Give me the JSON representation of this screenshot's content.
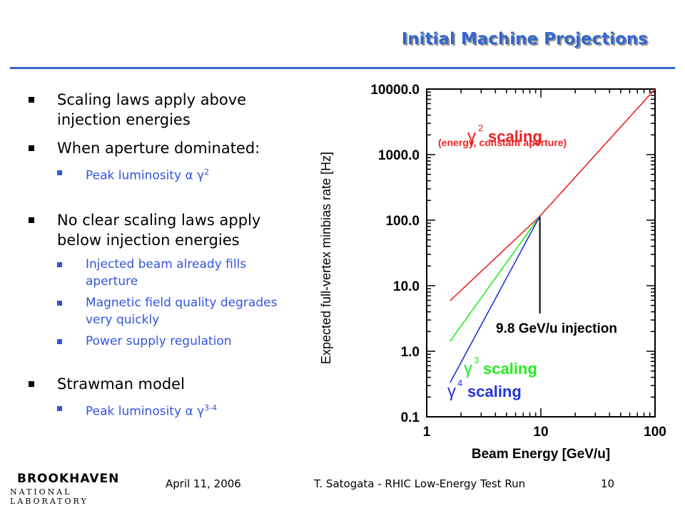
{
  "slide": {
    "title": "Initial Machine Projections",
    "bullets": {
      "b1": "Scaling laws apply above injection energies",
      "b2": "When aperture dominated:",
      "b2_sub1_text": "Peak luminosity ",
      "b2_sub1_sym": "α γ",
      "b2_sub1_exp": "2",
      "b3": "No clear scaling laws apply below injection energies",
      "b3_sub1": "Injected beam already fills aperture",
      "b3_sub2": "Magnetic field quality degrades very quickly",
      "b3_sub3": "Power supply regulation",
      "b4": "Strawman model",
      "b4_sub1_text": "Peak luminosity ",
      "b4_sub1_sym": "α γ",
      "b4_sub1_exp": "3-4"
    },
    "footer": {
      "date": "April 11, 2006",
      "author": "T. Satogata - RHIC Low-Energy Test Run",
      "page": "10",
      "logo_top": "BROOKHAVEN",
      "logo_bottom": "NATIONAL LABORATORY"
    }
  },
  "chart_data": {
    "type": "line",
    "xlabel": "Beam Energy [GeV/u]",
    "ylabel": "Expected full-vertex minbias rate [Hz]",
    "x_scale": "log",
    "y_scale": "log",
    "xlim": [
      1,
      100
    ],
    "ylim": [
      0.1,
      10000
    ],
    "x_ticks": [
      "1",
      "10",
      "100"
    ],
    "y_ticks": [
      "0.1",
      "1.0",
      "10.0",
      "100.0",
      "1000.0",
      "10000.0"
    ],
    "series": [
      {
        "name": "γ² scaling",
        "color": "#ee2222",
        "x": [
          1.6,
          9.8,
          100
        ],
        "y": [
          5.9,
          115,
          10000
        ]
      },
      {
        "name": "γ³ scaling",
        "color": "#22ee22",
        "x": [
          1.6,
          9.8
        ],
        "y": [
          1.42,
          115
        ]
      },
      {
        "name": "γ⁴ scaling",
        "color": "#2233dd",
        "x": [
          1.6,
          9.8
        ],
        "y": [
          0.33,
          115
        ]
      }
    ],
    "injection": {
      "x": 9.8,
      "y": 115,
      "label": "9.8 GeV/u injection"
    },
    "annotations": {
      "g2": "scaling",
      "g2_sub": "(energy, constant aperture)",
      "g3": "scaling",
      "g4": "scaling"
    },
    "colors": {
      "red": "#ee2222",
      "green": "#22ee22",
      "blue": "#2233dd"
    }
  }
}
